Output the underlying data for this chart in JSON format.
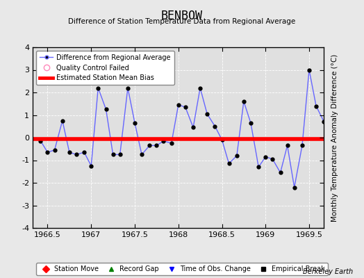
{
  "title": "BENBOW",
  "subtitle": "Difference of Station Temperature Data from Regional Average",
  "ylabel": "Monthly Temperature Anomaly Difference (°C)",
  "credit": "Berkeley Earth",
  "xlim": [
    1966.33,
    1969.67
  ],
  "ylim": [
    -4,
    4
  ],
  "xticks": [
    1966.5,
    1967.0,
    1967.5,
    1968.0,
    1968.5,
    1969.0,
    1969.5
  ],
  "yticks": [
    -4,
    -3,
    -2,
    -1,
    0,
    1,
    2,
    3,
    4
  ],
  "bias_y": -0.05,
  "line_color": "#6666FF",
  "bias_color": "#FF0000",
  "marker_color": "#000000",
  "bg_color": "#E8E8E8",
  "plot_bg": "#E0E0E0",
  "grid_color": "#FFFFFF",
  "data_x": [
    1966.42,
    1966.5,
    1966.58,
    1966.67,
    1966.75,
    1966.83,
    1966.92,
    1967.0,
    1967.08,
    1967.17,
    1967.25,
    1967.33,
    1967.42,
    1967.5,
    1967.58,
    1967.67,
    1967.75,
    1967.83,
    1967.92,
    1968.0,
    1968.08,
    1968.17,
    1968.25,
    1968.33,
    1968.42,
    1968.5,
    1968.58,
    1968.67,
    1968.75,
    1968.83,
    1968.92,
    1969.0,
    1969.08,
    1969.17,
    1969.25,
    1969.33,
    1969.42,
    1969.5,
    1969.58,
    1969.67
  ],
  "data_y": [
    -0.15,
    -0.65,
    -0.55,
    0.75,
    -0.65,
    -0.75,
    -0.65,
    -1.25,
    2.2,
    1.25,
    -0.75,
    -0.75,
    2.2,
    0.65,
    -0.75,
    -0.35,
    -0.35,
    -0.15,
    -0.25,
    1.45,
    1.35,
    0.45,
    2.2,
    1.05,
    0.5,
    -0.1,
    -1.15,
    -0.8,
    1.6,
    0.65,
    -1.3,
    -0.85,
    -0.95,
    -1.55,
    -0.35,
    -2.2,
    -0.35,
    3.0,
    1.4,
    0.7
  ]
}
